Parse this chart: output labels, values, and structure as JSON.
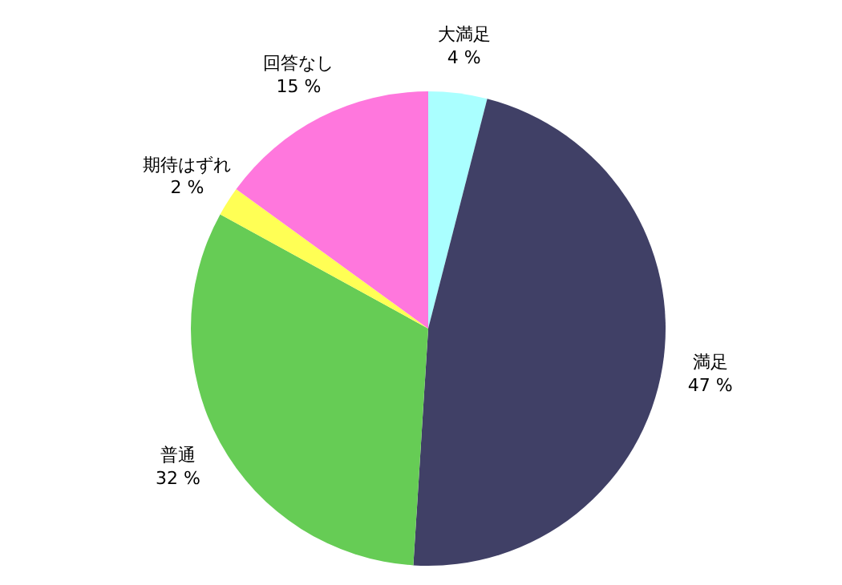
{
  "chart_data": {
    "type": "pie",
    "categories": [
      "大満足",
      "満足",
      "普通",
      "期待はずれ",
      "回答なし"
    ],
    "values": [
      4,
      47,
      32,
      2,
      15
    ],
    "value_labels": [
      "4 %",
      "47 %",
      "32 %",
      "2 %",
      "15 %"
    ],
    "colors": [
      "#aaffff",
      "#404066",
      "#66cc55",
      "#ffff55",
      "#ff77dd"
    ],
    "legend": false
  }
}
